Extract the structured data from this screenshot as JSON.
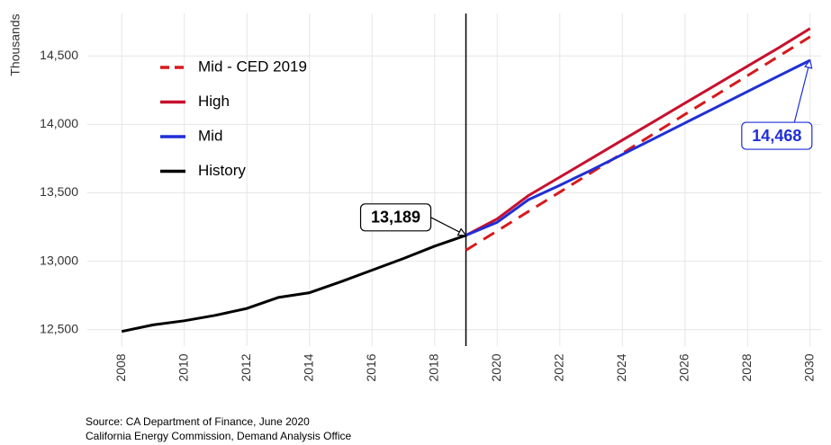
{
  "chart_data": {
    "type": "line",
    "y_label": "Thousands",
    "xlim": [
      2006.9,
      2030.35
    ],
    "ylim": [
      12380,
      14810
    ],
    "xticks": [
      2008,
      2010,
      2012,
      2014,
      2016,
      2018,
      2020,
      2022,
      2024,
      2026,
      2028,
      2030
    ],
    "yticks": [
      {
        "value": 12500,
        "label": "12,500"
      },
      {
        "value": 13000,
        "label": "13,000"
      },
      {
        "value": 13500,
        "label": "13,500"
      },
      {
        "value": 14000,
        "label": "14,000"
      },
      {
        "value": 14500,
        "label": "14,500"
      }
    ],
    "grid": true,
    "vline": 2019,
    "series": [
      {
        "name": "Mid - CED 2019",
        "color": "#d7191c",
        "dashed": true,
        "x": [
          2019,
          2020,
          2021,
          2022,
          2023,
          2024,
          2025,
          2026,
          2027,
          2028,
          2029,
          2030
        ],
        "values": [
          13080,
          13222,
          13364,
          13505,
          13647,
          13789,
          13931,
          14073,
          14215,
          14356,
          14498,
          14640
        ]
      },
      {
        "name": "High",
        "color": "#c8102e",
        "dashed": false,
        "x": [
          2019,
          2020,
          2021,
          2022,
          2023,
          2024,
          2025,
          2026,
          2027,
          2028,
          2029,
          2030
        ],
        "values": [
          13189,
          13310,
          13480,
          13615,
          13750,
          13885,
          14020,
          14155,
          14290,
          14425,
          14560,
          14700
        ]
      },
      {
        "name": "Mid",
        "color": "#1f2fd6",
        "dashed": false,
        "x": [
          2019,
          2020,
          2021,
          2022,
          2023,
          2024,
          2025,
          2026,
          2027,
          2028,
          2029,
          2030
        ],
        "values": [
          13189,
          13285,
          13450,
          13555,
          13665,
          13780,
          13895,
          14010,
          14125,
          14240,
          14355,
          14468
        ]
      },
      {
        "name": "History",
        "color": "#000000",
        "dashed": false,
        "x": [
          2008,
          2009,
          2010,
          2011,
          2012,
          2013,
          2014,
          2015,
          2016,
          2017,
          2018,
          2019
        ],
        "values": [
          12487,
          12535,
          12565,
          12605,
          12655,
          12735,
          12770,
          12850,
          12935,
          13020,
          13110,
          13189
        ]
      }
    ],
    "annotations": [
      {
        "text": "13,189",
        "x": 2019,
        "y": 13189,
        "color": "#000000"
      },
      {
        "text": "14,468",
        "x": 2030,
        "y": 14468,
        "color": "#1f2fd6"
      }
    ],
    "source": [
      "Source: CA Department of Finance, June 2020",
      "California Energy Commission, Demand Analysis Office"
    ]
  }
}
